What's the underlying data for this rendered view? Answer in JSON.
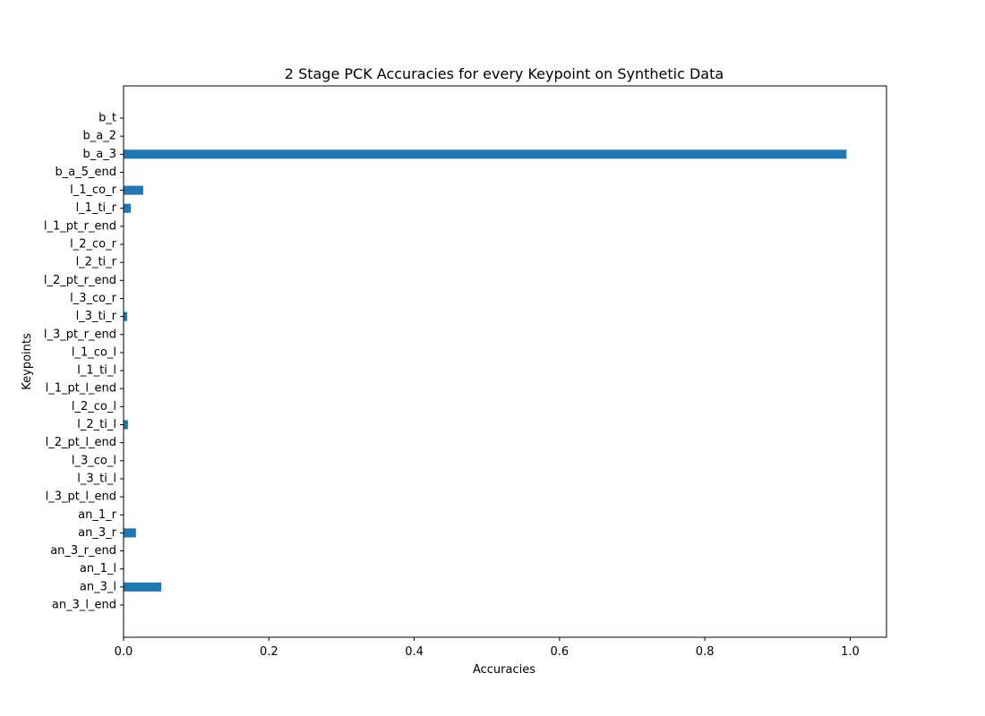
{
  "chart_data": {
    "type": "bar",
    "orientation": "horizontal",
    "title": "2 Stage PCK Accuracies for every Keypoint on Synthetic Data",
    "xlabel": "Accuracies",
    "ylabel": "Keypoints",
    "xlim": [
      0,
      1.05
    ],
    "xticks": [
      0.0,
      0.2,
      0.4,
      0.6,
      0.8,
      1.0
    ],
    "xtick_labels": [
      "0.0",
      "0.2",
      "0.4",
      "0.6",
      "0.8",
      "1.0"
    ],
    "grid": false,
    "bar_color": "#1f77b4",
    "categories": [
      "b_t",
      "b_a_2",
      "b_a_3",
      "b_a_5_end",
      "l_1_co_r",
      "l_1_ti_r",
      "l_1_pt_r_end",
      "l_2_co_r",
      "l_2_ti_r",
      "l_2_pt_r_end",
      "l_3_co_r",
      "l_3_ti_r",
      "l_3_pt_r_end",
      "l_1_co_l",
      "l_1_ti_l",
      "l_1_pt_l_end",
      "l_2_co_l",
      "l_2_ti_l",
      "l_2_pt_l_end",
      "l_3_co_l",
      "l_3_ti_l",
      "l_3_pt_l_end",
      "an_1_r",
      "an_3_r",
      "an_3_r_end",
      "an_1_l",
      "an_3_l",
      "an_3_l_end"
    ],
    "values": [
      0,
      0,
      0.995,
      0,
      0.027,
      0.01,
      0,
      0,
      0,
      0,
      0,
      0.005,
      0,
      0,
      0,
      0,
      0,
      0.006,
      0,
      0,
      0,
      0,
      0,
      0.017,
      0,
      0,
      0.052,
      0
    ]
  }
}
